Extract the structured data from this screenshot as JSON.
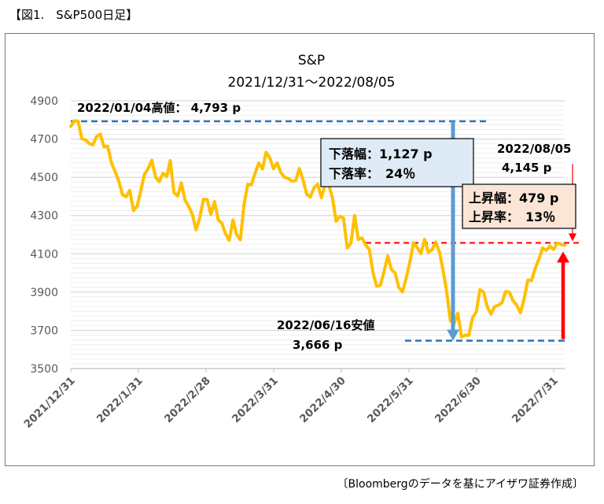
{
  "figure_caption": "【図1.　S&P500日足】",
  "source_note": "〔Bloombergのデータを基にアイザワ証券作成〕",
  "chart_data": {
    "type": "line",
    "title": "S&P",
    "subtitle": "2021/12/31～2022/08/05",
    "ylim": [
      3500,
      4900
    ],
    "yticks": [
      3500,
      3700,
      3900,
      4100,
      4300,
      4500,
      4700,
      4900
    ],
    "xticks": [
      "2021/12/31",
      "2022/1/31",
      "2022/2/28",
      "2022/3/31",
      "2022/4/30",
      "2022/5/31",
      "2022/6/30",
      "2022/7/31"
    ],
    "grid": true,
    "line_color": "#FFC000",
    "series": [
      {
        "values": [
          4766,
          4796,
          4793,
          4701,
          4696,
          4677,
          4670,
          4713,
          4726,
          4659,
          4663,
          4577,
          4532,
          4482,
          4410,
          4398,
          4432,
          4326,
          4350,
          4431,
          4516,
          4546,
          4589,
          4500,
          4477,
          4521,
          4504,
          4587,
          4419,
          4402,
          4471,
          4380,
          4348,
          4304,
          4225,
          4288,
          4385,
          4384,
          4306,
          4373,
          4278,
          4260,
          4204,
          4170,
          4277,
          4201,
          4173,
          4357,
          4463,
          4461,
          4520,
          4575,
          4543,
          4631,
          4602,
          4545,
          4575,
          4525,
          4500,
          4494,
          4480,
          4483,
          4546,
          4488,
          4412,
          4397,
          4446,
          4464,
          4393,
          4462,
          4459,
          4393,
          4271,
          4296,
          4287,
          4131,
          4155,
          4300,
          4175,
          4183,
          4146,
          4123,
          4002,
          3930,
          3936,
          4008,
          4089,
          4017,
          4000,
          3924,
          3901,
          3973,
          4058,
          4158,
          4132,
          4101,
          4176,
          4108,
          4121,
          4161,
          4110,
          4016,
          3901,
          3749,
          3735,
          3790,
          3666,
          3675,
          3674,
          3765,
          3795,
          3912,
          3900,
          3822,
          3785,
          3825,
          3831,
          3845,
          3903,
          3899,
          3855,
          3831,
          3791,
          3863,
          3962,
          3960,
          4023,
          4072,
          4130,
          4118,
          4140,
          4123,
          4156,
          4149,
          4145
        ]
      }
    ],
    "annotations": {
      "high": {
        "label": "2022/01/04高値： 4,793 p",
        "value": 4793
      },
      "low": {
        "label_date": "2022/06/16安値",
        "label_value": "3,666 p",
        "value": 3666
      },
      "last": {
        "label_date": "2022/08/05",
        "label_value": "4,145  p",
        "value": 4145
      },
      "decline_box": {
        "line1": "下落幅：1,127 p",
        "line2": "下落率：　24％",
        "fill": "#DEEBF7"
      },
      "rise_box": {
        "line1": "上昇幅：479 p",
        "line2": "上昇率：　13％",
        "fill": "#FBE5D6"
      }
    },
    "colors": {
      "dashed_blue": "#2E75B6",
      "dashed_red": "#FF0000",
      "arrow_blue": "#5B9BD5",
      "arrow_red": "#FF0000"
    }
  }
}
